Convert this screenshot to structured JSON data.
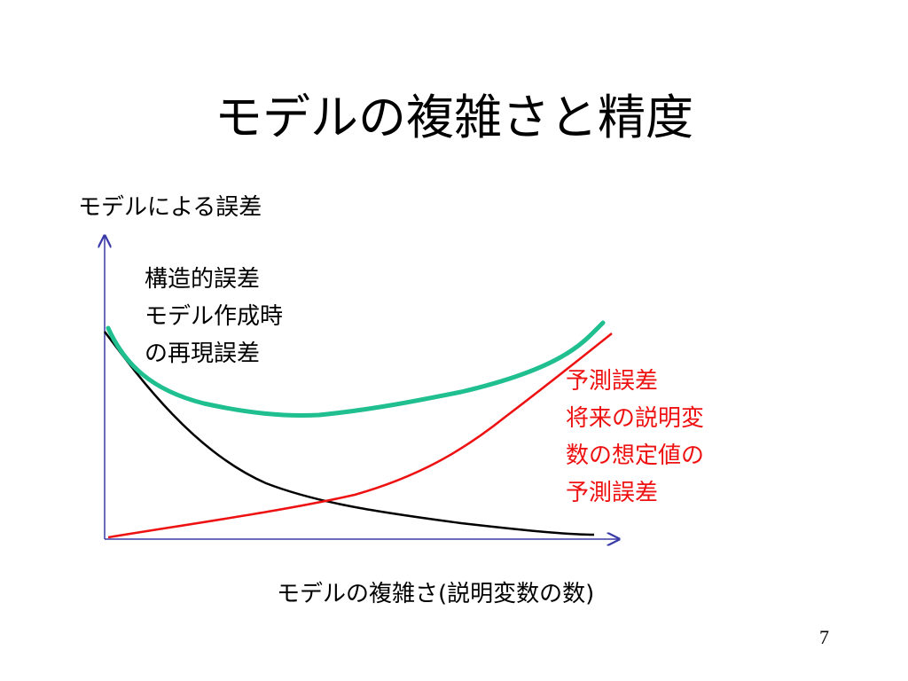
{
  "title": "モデルの複雑さと精度",
  "axes": {
    "y_label": "モデルによる誤差",
    "x_label": "モデルの複雑さ(説明変数の数)"
  },
  "annotations": {
    "structural_error": "構造的誤差\nモデル作成時\nの再現誤差",
    "prediction_error": "予測誤差\n将来の説明変\n数の想定値の\n予測誤差"
  },
  "curves": {
    "total_color": "#1fbf8f",
    "structural_color": "#000000",
    "prediction_color": "#ee1111",
    "axis_color": "#3a3aa8"
  },
  "page_number": "7"
}
